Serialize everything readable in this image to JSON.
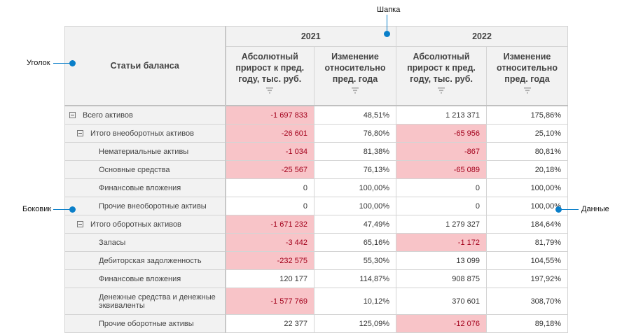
{
  "annotations": {
    "header": "Шапка",
    "corner": "Уголок",
    "side": "Боковик",
    "data": "Данные"
  },
  "colors": {
    "negative_bg": "#f8c4c8",
    "negative_text": "#a3001b",
    "header_bg": "#f2f2f2",
    "callout": "#0a7fc9"
  },
  "table": {
    "corner_label": "Статьи баланса",
    "years": [
      "2021",
      "2022"
    ],
    "measures": [
      "Абсолютный прирост к пред. году, тыс. руб.",
      "Изменение относительно пред. года"
    ],
    "filter_icon": "filter-icon",
    "rows": [
      {
        "label": "Всего активов",
        "level": 0,
        "toggle": true,
        "cells": [
          {
            "v": "-1 697 833",
            "neg": true
          },
          {
            "v": "48,51%"
          },
          {
            "v": "1 213 371"
          },
          {
            "v": "175,86%"
          }
        ]
      },
      {
        "label": "Итого внеоборотных активов",
        "level": 1,
        "toggle": true,
        "cells": [
          {
            "v": "-26 601",
            "neg": true
          },
          {
            "v": "76,80%"
          },
          {
            "v": "-65 956",
            "neg": true
          },
          {
            "v": "25,10%"
          }
        ]
      },
      {
        "label": "Нематериальные активы",
        "level": 2,
        "cells": [
          {
            "v": "-1 034",
            "neg": true
          },
          {
            "v": "81,38%"
          },
          {
            "v": "-867",
            "neg": true
          },
          {
            "v": "80,81%"
          }
        ]
      },
      {
        "label": "Основные средства",
        "level": 2,
        "cells": [
          {
            "v": "-25 567",
            "neg": true
          },
          {
            "v": "76,13%"
          },
          {
            "v": "-65 089",
            "neg": true
          },
          {
            "v": "20,18%"
          }
        ]
      },
      {
        "label": "Финансовые вложения",
        "level": 2,
        "cells": [
          {
            "v": "0"
          },
          {
            "v": "100,00%"
          },
          {
            "v": "0"
          },
          {
            "v": "100,00%"
          }
        ]
      },
      {
        "label": "Прочие внеоборотные активы",
        "level": 2,
        "cells": [
          {
            "v": "0"
          },
          {
            "v": "100,00%"
          },
          {
            "v": "0"
          },
          {
            "v": "100,00%"
          }
        ]
      },
      {
        "label": "Итого оборотных активов",
        "level": 1,
        "toggle": true,
        "cells": [
          {
            "v": "-1 671 232",
            "neg": true
          },
          {
            "v": "47,49%"
          },
          {
            "v": "1 279 327"
          },
          {
            "v": "184,64%"
          }
        ]
      },
      {
        "label": "Запасы",
        "level": 2,
        "cells": [
          {
            "v": "-3 442",
            "neg": true
          },
          {
            "v": "65,16%"
          },
          {
            "v": "-1 172",
            "neg": true
          },
          {
            "v": "81,79%"
          }
        ]
      },
      {
        "label": "Дебиторская задолженность",
        "level": 2,
        "cells": [
          {
            "v": "-232 575",
            "neg": true
          },
          {
            "v": "55,30%"
          },
          {
            "v": "13 099"
          },
          {
            "v": "104,55%"
          }
        ]
      },
      {
        "label": "Финансовые вложения",
        "level": 2,
        "cells": [
          {
            "v": "120 177"
          },
          {
            "v": "114,87%"
          },
          {
            "v": "908 875"
          },
          {
            "v": "197,92%"
          }
        ]
      },
      {
        "label": "Денежные средства и денежные эквиваленты",
        "level": 2,
        "tall": true,
        "cells": [
          {
            "v": "-1 577 769",
            "neg": true
          },
          {
            "v": "10,12%"
          },
          {
            "v": "370 601"
          },
          {
            "v": "308,70%"
          }
        ]
      },
      {
        "label": "Прочие оборотные активы",
        "level": 2,
        "cells": [
          {
            "v": "22 377"
          },
          {
            "v": "125,09%"
          },
          {
            "v": "-12 076",
            "neg": true
          },
          {
            "v": "89,18%"
          }
        ]
      }
    ]
  }
}
